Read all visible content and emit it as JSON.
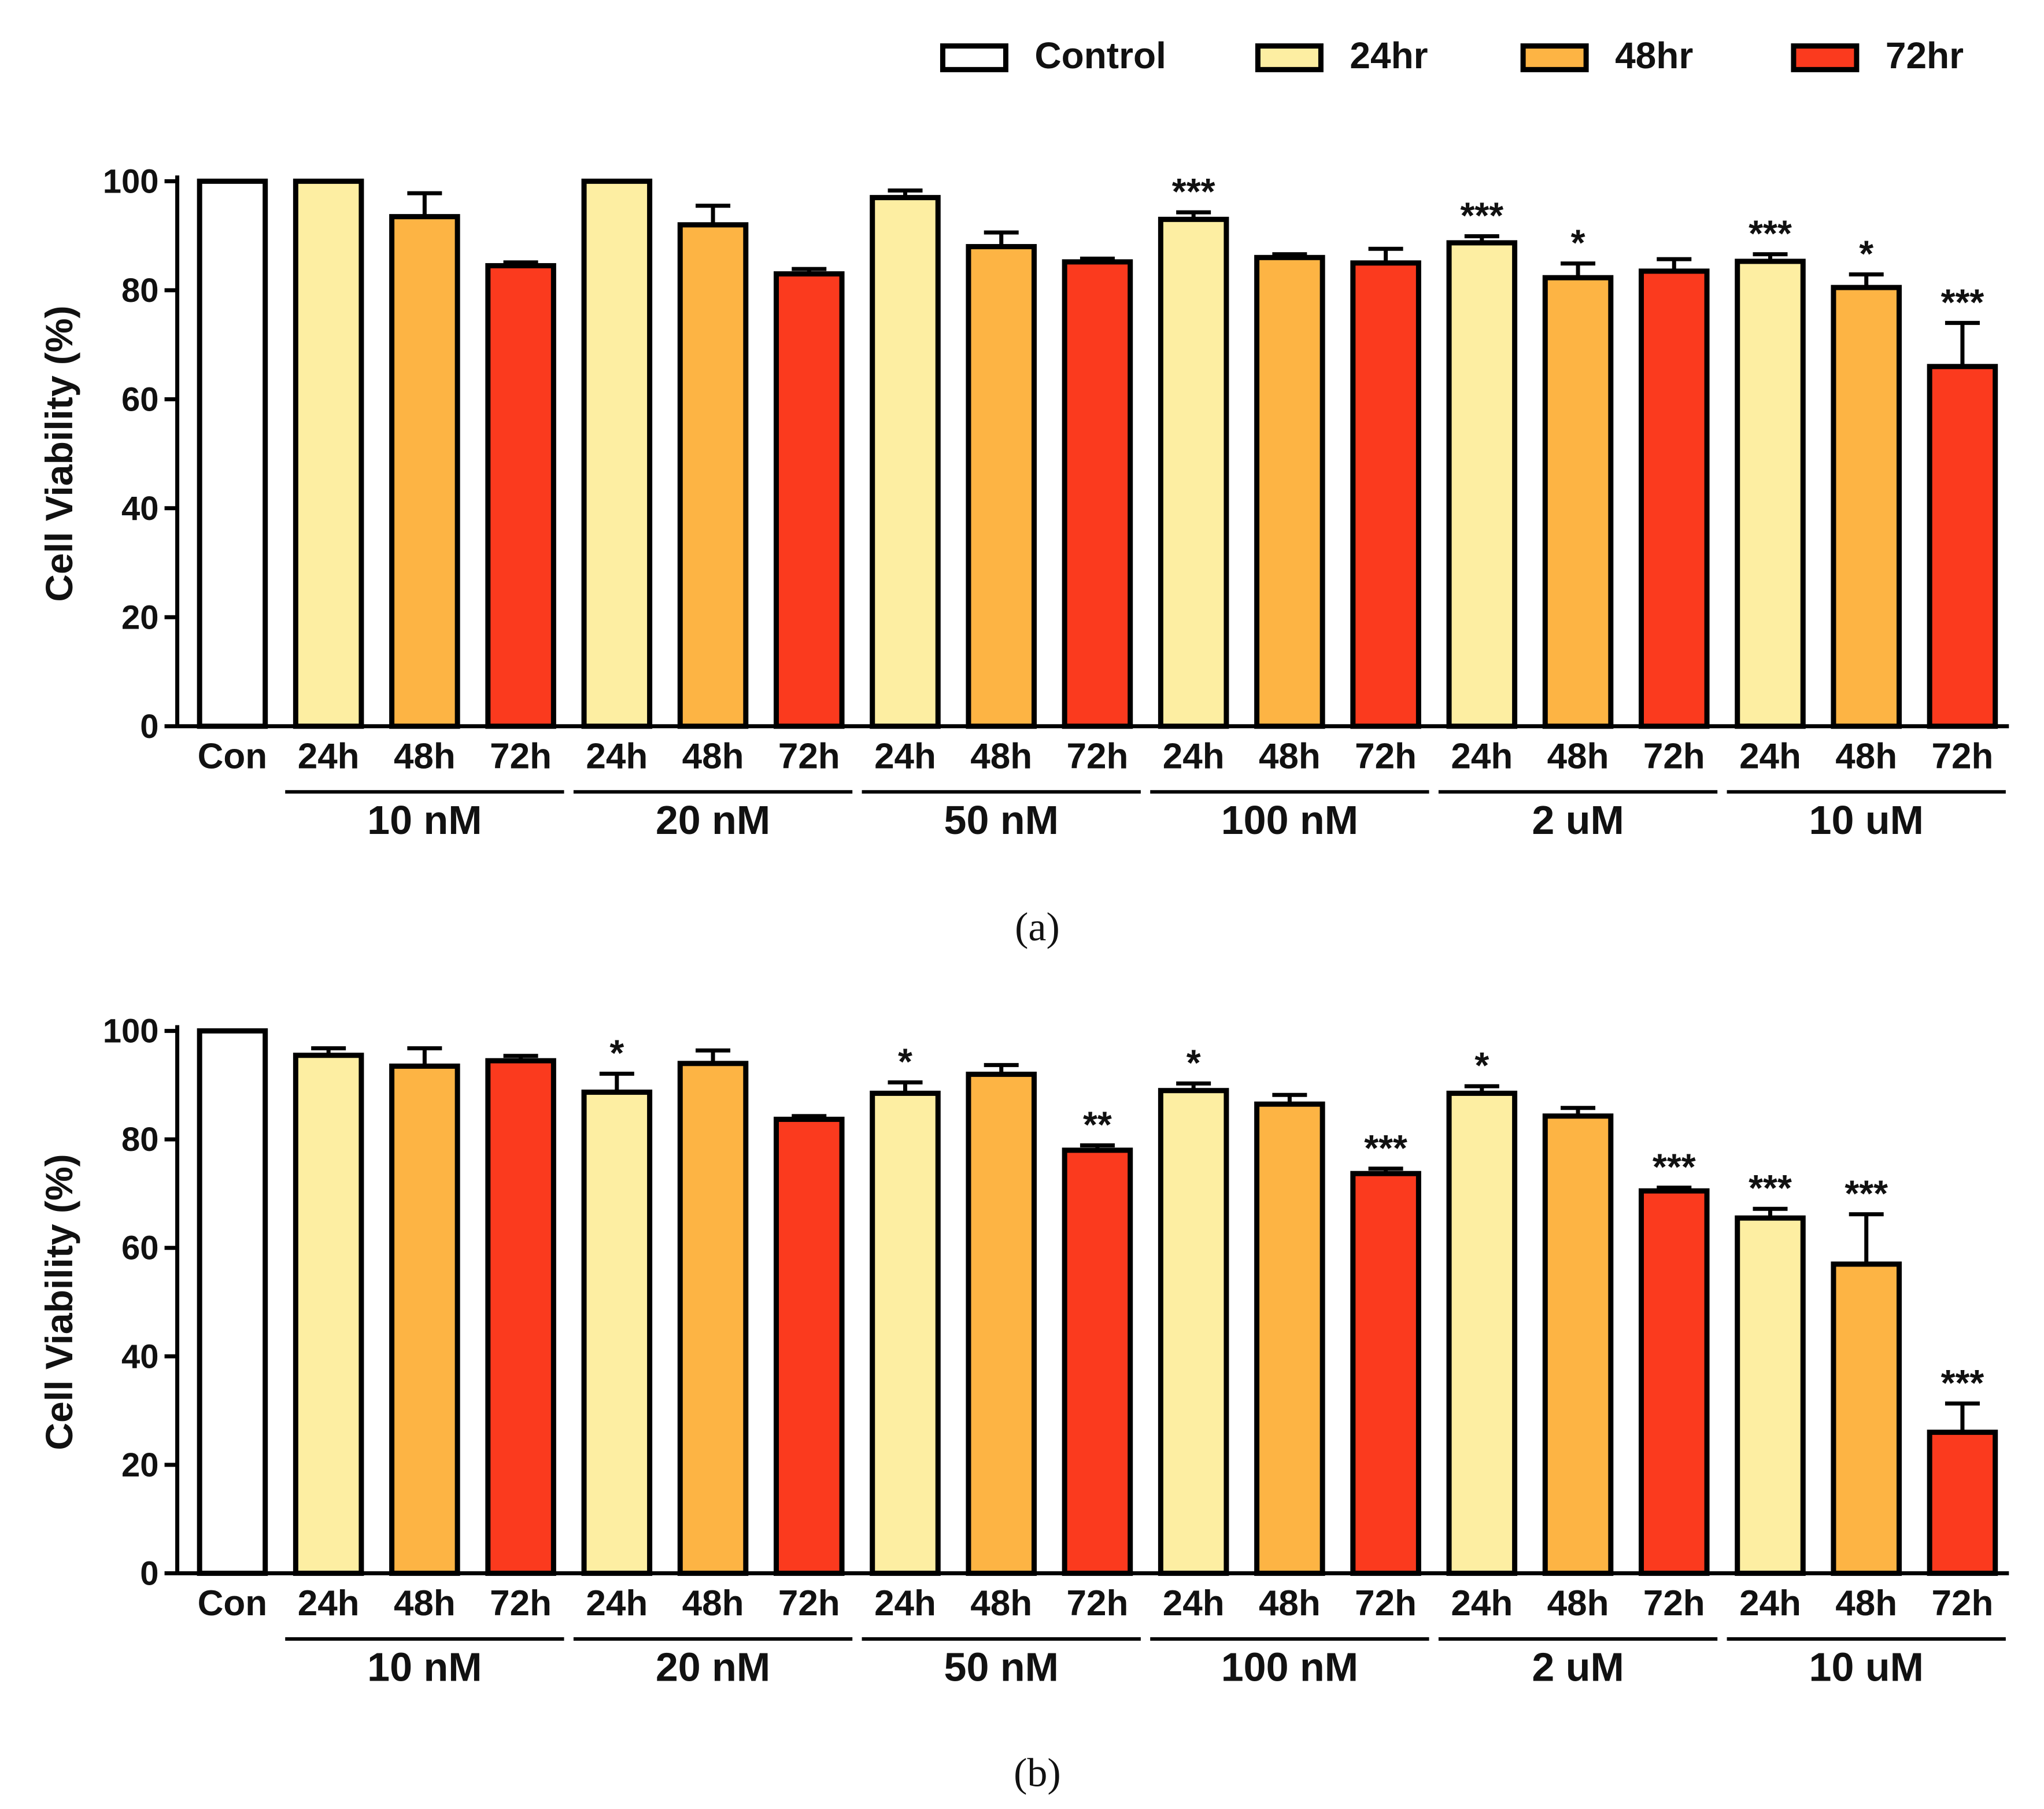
{
  "legend": {
    "items": [
      {
        "label": "Control",
        "color": "#ffffff"
      },
      {
        "label": "24hr",
        "color": "#fdeea2"
      },
      {
        "label": "48hr",
        "color": "#fdb444"
      },
      {
        "label": "72hr",
        "color": "#fb3a1e"
      }
    ]
  },
  "colors": {
    "control": "#ffffff",
    "h24": "#fdeea2",
    "h48": "#fdb444",
    "h72": "#fb3a1e",
    "stroke": "#000000"
  },
  "chart_data": [
    {
      "panel_label": "(a)",
      "panel_letter": "a",
      "type": "bar",
      "ylabel": "Cell Viability (%)",
      "ylim": [
        0,
        100
      ],
      "yticks": [
        "0",
        "20",
        "40",
        "60",
        "80",
        "100"
      ],
      "categories": [
        "Con",
        "24h",
        "48h",
        "72h",
        "24h",
        "48h",
        "72h",
        "24h",
        "48h",
        "72h",
        "24h",
        "48h",
        "72h",
        "24h",
        "48h",
        "72h",
        "24h",
        "48h",
        "72h"
      ],
      "groups": [
        "10 nM",
        "20 nM",
        "50 nM",
        "100 nM",
        "2 uM",
        "10 uM"
      ],
      "values": [
        100,
        100,
        93.5,
        84.5,
        100,
        92,
        83,
        97,
        88,
        85.2,
        93,
        86,
        85,
        88.7,
        82.3,
        83.5,
        85.3,
        80.5,
        66
      ],
      "errors": [
        0,
        0,
        4.3,
        0.6,
        0,
        3.5,
        0.9,
        1.3,
        2.6,
        0.6,
        1.3,
        0.6,
        2.6,
        1.2,
        2.6,
        2.2,
        1.3,
        2.4,
        8
      ],
      "annotations": [
        "",
        "",
        "",
        "",
        "",
        "",
        "",
        "",
        "",
        "",
        "***",
        "",
        "",
        "***",
        "*",
        "",
        "***",
        "*",
        "***"
      ]
    },
    {
      "panel_label": "(b)",
      "panel_letter": "b",
      "type": "bar",
      "ylabel": "Cell Viability (%)",
      "ylim": [
        0,
        100
      ],
      "yticks": [
        "0",
        "20",
        "40",
        "60",
        "80",
        "100"
      ],
      "categories": [
        "Con",
        "24h",
        "48h",
        "72h",
        "24h",
        "48h",
        "72h",
        "24h",
        "48h",
        "72h",
        "24h",
        "48h",
        "72h",
        "24h",
        "48h",
        "72h",
        "24h",
        "48h",
        "72h"
      ],
      "groups": [
        "10 nM",
        "20 nM",
        "50 nM",
        "100 nM",
        "2 uM",
        "10 uM"
      ],
      "values": [
        100,
        95.5,
        93.5,
        94.5,
        88.7,
        94,
        83.7,
        88.5,
        92,
        78,
        89,
        86.5,
        73.7,
        88.5,
        84.3,
        70.5,
        65.5,
        57,
        26
      ],
      "errors": [
        0,
        1.3,
        3.3,
        0.9,
        3.4,
        2.4,
        0.6,
        2.0,
        1.7,
        0.9,
        1.3,
        1.7,
        0.9,
        1.3,
        1.5,
        0.6,
        1.7,
        9.2,
        5.3
      ],
      "annotations": [
        "",
        "",
        "",
        "",
        "*",
        "",
        "",
        "*",
        "",
        "**",
        "*",
        "",
        "***",
        "*",
        "",
        "***",
        "***",
        "***",
        "***"
      ]
    }
  ]
}
